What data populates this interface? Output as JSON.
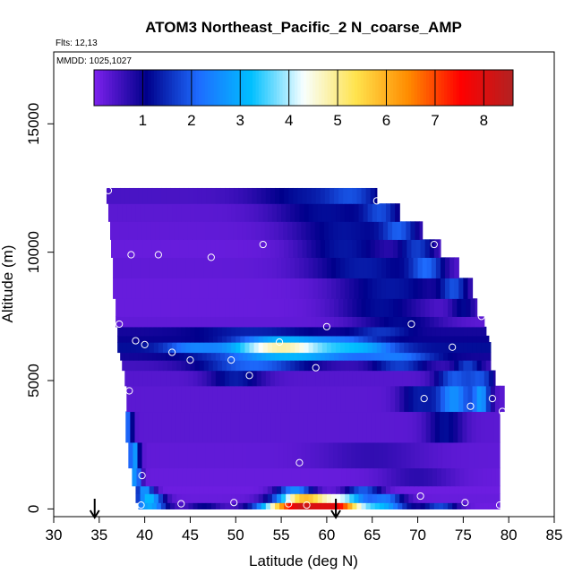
{
  "chart_data": {
    "type": "heatmap",
    "title": "ATOM3 Northeast_Pacific_2 N_coarse_AMP",
    "meta_lines": [
      "Flts: 12,13",
      "MMDD: 1025,1027"
    ],
    "xlabel": "Latitude (deg N)",
    "ylabel": "Altitude (m)",
    "xlim": [
      30,
      85
    ],
    "ylim": [
      -300,
      17800
    ],
    "xticks": [
      30,
      35,
      40,
      45,
      50,
      55,
      60,
      65,
      70,
      75,
      80,
      85
    ],
    "yticks": [
      0,
      5000,
      10000,
      15000
    ],
    "grid": false,
    "colorbar": {
      "location": "top-inside",
      "range": [
        0,
        8.6
      ],
      "ticks": [
        1,
        2,
        3,
        4,
        5,
        6,
        7,
        8
      ],
      "stops": [
        "#7e22ee",
        "#00008b",
        "#1e6cff",
        "#00bfff",
        "#f8ffff",
        "#ffe34d",
        "#ff8c00",
        "#ff0000",
        "#b22222"
      ]
    },
    "field": {
      "rows": [
        {
          "y0": 0,
          "y1": 250,
          "xmin": 39.3,
          "xmax": 79.0,
          "base": 0.15,
          "bumps": [
            [
              40.5,
              2.0,
              2.8
            ],
            [
              46.5,
              2.0,
              0.9
            ],
            [
              57.0,
              4.0,
              7.8
            ],
            [
              61.5,
              2.5,
              4.8
            ],
            [
              66.0,
              3.0,
              2.8
            ],
            [
              72.5,
              2.0,
              1.6
            ]
          ]
        },
        {
          "y0": 250,
          "y1": 600,
          "xmin": 39.0,
          "xmax": 79.0,
          "base": 0.2,
          "bumps": [
            [
              40.5,
              1.5,
              3.0
            ],
            [
              57.5,
              3.0,
              5.5
            ],
            [
              62.0,
              2.5,
              3.2
            ],
            [
              66.5,
              2.0,
              2.0
            ]
          ]
        },
        {
          "y0": 600,
          "y1": 900,
          "xmin": 39.0,
          "xmax": 79.0,
          "base": 0.15,
          "bumps": [
            [
              40.0,
              1.0,
              2.6
            ],
            [
              56.5,
              2.0,
              2.4
            ],
            [
              64.0,
              2.0,
              1.8
            ]
          ]
        },
        {
          "y0": 900,
          "y1": 1600,
          "xmin": 38.6,
          "xmax": 79.0,
          "base": 0.2,
          "bumps": [
            [
              39.0,
              0.6,
              2.6
            ],
            [
              70.0,
              4.0,
              0.5
            ]
          ]
        },
        {
          "y0": 1600,
          "y1": 2600,
          "xmin": 38.2,
          "xmax": 79.0,
          "base": 0.25,
          "bumps": [
            [
              38.8,
              0.6,
              2.6
            ],
            [
              65.0,
              6.0,
              0.4
            ]
          ]
        },
        {
          "y0": 2600,
          "y1": 3800,
          "xmin": 37.9,
          "xmax": 79.0,
          "base": 0.3,
          "bumps": [
            [
              38.2,
              0.5,
              1.8
            ],
            [
              73.0,
              2.0,
              0.9
            ]
          ]
        },
        {
          "y0": 3800,
          "y1": 4800,
          "xmin": 38.0,
          "xmax": 79.5,
          "base": 0.3,
          "bumps": [
            [
              74.0,
              2.0,
              2.3
            ],
            [
              77.0,
              1.0,
              2.2
            ],
            [
              70.0,
              2.0,
              1.0
            ]
          ]
        },
        {
          "y0": 4800,
          "y1": 5400,
          "xmin": 37.8,
          "xmax": 78.5,
          "base": 0.35,
          "bumps": [
            [
              50.0,
              3.0,
              1.0
            ],
            [
              74.0,
              2.0,
              1.6
            ],
            [
              77.0,
              1.5,
              1.4
            ]
          ]
        },
        {
          "y0": 5400,
          "y1": 5800,
          "xmin": 37.5,
          "xmax": 78.0,
          "base": 0.5,
          "bumps": [
            [
              52.0,
              6.0,
              1.6
            ],
            [
              68.0,
              3.0,
              1.2
            ],
            [
              75.5,
              1.5,
              1.2
            ]
          ]
        },
        {
          "y0": 5800,
          "y1": 6100,
          "xmin": 37.3,
          "xmax": 78.0,
          "base": 0.9,
          "bumps": [
            [
              56.0,
              8.0,
              2.2
            ],
            [
              68.0,
              4.0,
              1.2
            ]
          ]
        },
        {
          "y0": 6100,
          "y1": 6500,
          "xmin": 37.0,
          "xmax": 78.0,
          "base": 1.2,
          "bumps": [
            [
              55.0,
              6.0,
              3.6
            ],
            [
              64.0,
              4.0,
              1.5
            ],
            [
              45.0,
              3.0,
              1.0
            ]
          ]
        },
        {
          "y0": 6500,
          "y1": 6750,
          "xmin": 37.0,
          "xmax": 77.8,
          "base": 1.0,
          "bumps": [
            [
              55.0,
              5.0,
              2.0
            ],
            [
              62.0,
              4.0,
              1.0
            ]
          ]
        },
        {
          "y0": 6750,
          "y1": 7100,
          "xmin": 37.0,
          "xmax": 77.5,
          "base": 0.9,
          "bumps": [
            [
              52.0,
              6.0,
              0.5
            ],
            [
              66.0,
              3.0,
              0.7
            ]
          ]
        },
        {
          "y0": 7100,
          "y1": 7500,
          "xmin": 36.8,
          "xmax": 77.3,
          "base": 0.25,
          "bumps": [
            [
              68.0,
              5.0,
              0.9
            ]
          ]
        },
        {
          "y0": 7500,
          "y1": 8200,
          "xmin": 36.8,
          "xmax": 76.5,
          "base": 0.2,
          "bumps": [
            [
              66.0,
              5.0,
              1.0
            ],
            [
              75.0,
              1.5,
              0.9
            ]
          ]
        },
        {
          "y0": 8200,
          "y1": 9000,
          "xmin": 36.5,
          "xmax": 76.0,
          "base": 0.2,
          "bumps": [
            [
              67.0,
              6.0,
              1.1
            ],
            [
              74.0,
              1.5,
              1.4
            ]
          ]
        },
        {
          "y0": 9000,
          "y1": 9800,
          "xmin": 36.5,
          "xmax": 74.5,
          "base": 0.25,
          "bumps": [
            [
              64.0,
              6.0,
              1.1
            ],
            [
              71.0,
              2.0,
              1.6
            ]
          ]
        },
        {
          "y0": 9800,
          "y1": 10500,
          "xmin": 36.3,
          "xmax": 72.5,
          "base": 0.2,
          "bumps": [
            [
              62.0,
              5.0,
              1.1
            ],
            [
              70.0,
              2.0,
              1.4
            ]
          ]
        },
        {
          "y0": 10500,
          "y1": 11200,
          "xmin": 36.2,
          "xmax": 70.5,
          "base": 0.25,
          "bumps": [
            [
              62.0,
              6.0,
              1.0
            ],
            [
              68.0,
              2.0,
              1.4
            ]
          ]
        },
        {
          "y0": 11200,
          "y1": 11900,
          "xmin": 36.0,
          "xmax": 68.0,
          "base": 0.3,
          "bumps": [
            [
              60.0,
              6.0,
              0.9
            ],
            [
              66.0,
              2.0,
              1.2
            ]
          ]
        },
        {
          "y0": 11900,
          "y1": 12500,
          "xmin": 35.8,
          "xmax": 65.5,
          "base": 0.45,
          "bumps": [
            [
              58.0,
              6.0,
              0.8
            ],
            [
              63.0,
              3.0,
              1.0
            ]
          ]
        }
      ]
    },
    "points": [
      [
        36.0,
        12400
      ],
      [
        65.5,
        12000
      ],
      [
        71.8,
        10300
      ],
      [
        53.0,
        10300
      ],
      [
        41.5,
        9900
      ],
      [
        38.5,
        9900
      ],
      [
        47.3,
        9800
      ],
      [
        37.2,
        7200
      ],
      [
        60.0,
        7100
      ],
      [
        69.3,
        7200
      ],
      [
        77.0,
        7500
      ],
      [
        39.0,
        6550
      ],
      [
        40.0,
        6400
      ],
      [
        54.8,
        6500
      ],
      [
        43.0,
        6100
      ],
      [
        45.0,
        5800
      ],
      [
        49.5,
        5800
      ],
      [
        73.8,
        6300
      ],
      [
        58.8,
        5500
      ],
      [
        51.5,
        5200
      ],
      [
        38.3,
        4600
      ],
      [
        70.7,
        4300
      ],
      [
        75.8,
        4000
      ],
      [
        78.2,
        4300
      ],
      [
        79.3,
        3800
      ],
      [
        57.0,
        1800
      ],
      [
        39.7,
        1300
      ],
      [
        70.3,
        500
      ],
      [
        75.2,
        250
      ],
      [
        79.0,
        150
      ],
      [
        49.8,
        250
      ],
      [
        44.0,
        200
      ],
      [
        39.6,
        150
      ],
      [
        55.8,
        200
      ],
      [
        57.8,
        150
      ]
    ],
    "arrows": [
      34.5,
      61.0
    ]
  }
}
